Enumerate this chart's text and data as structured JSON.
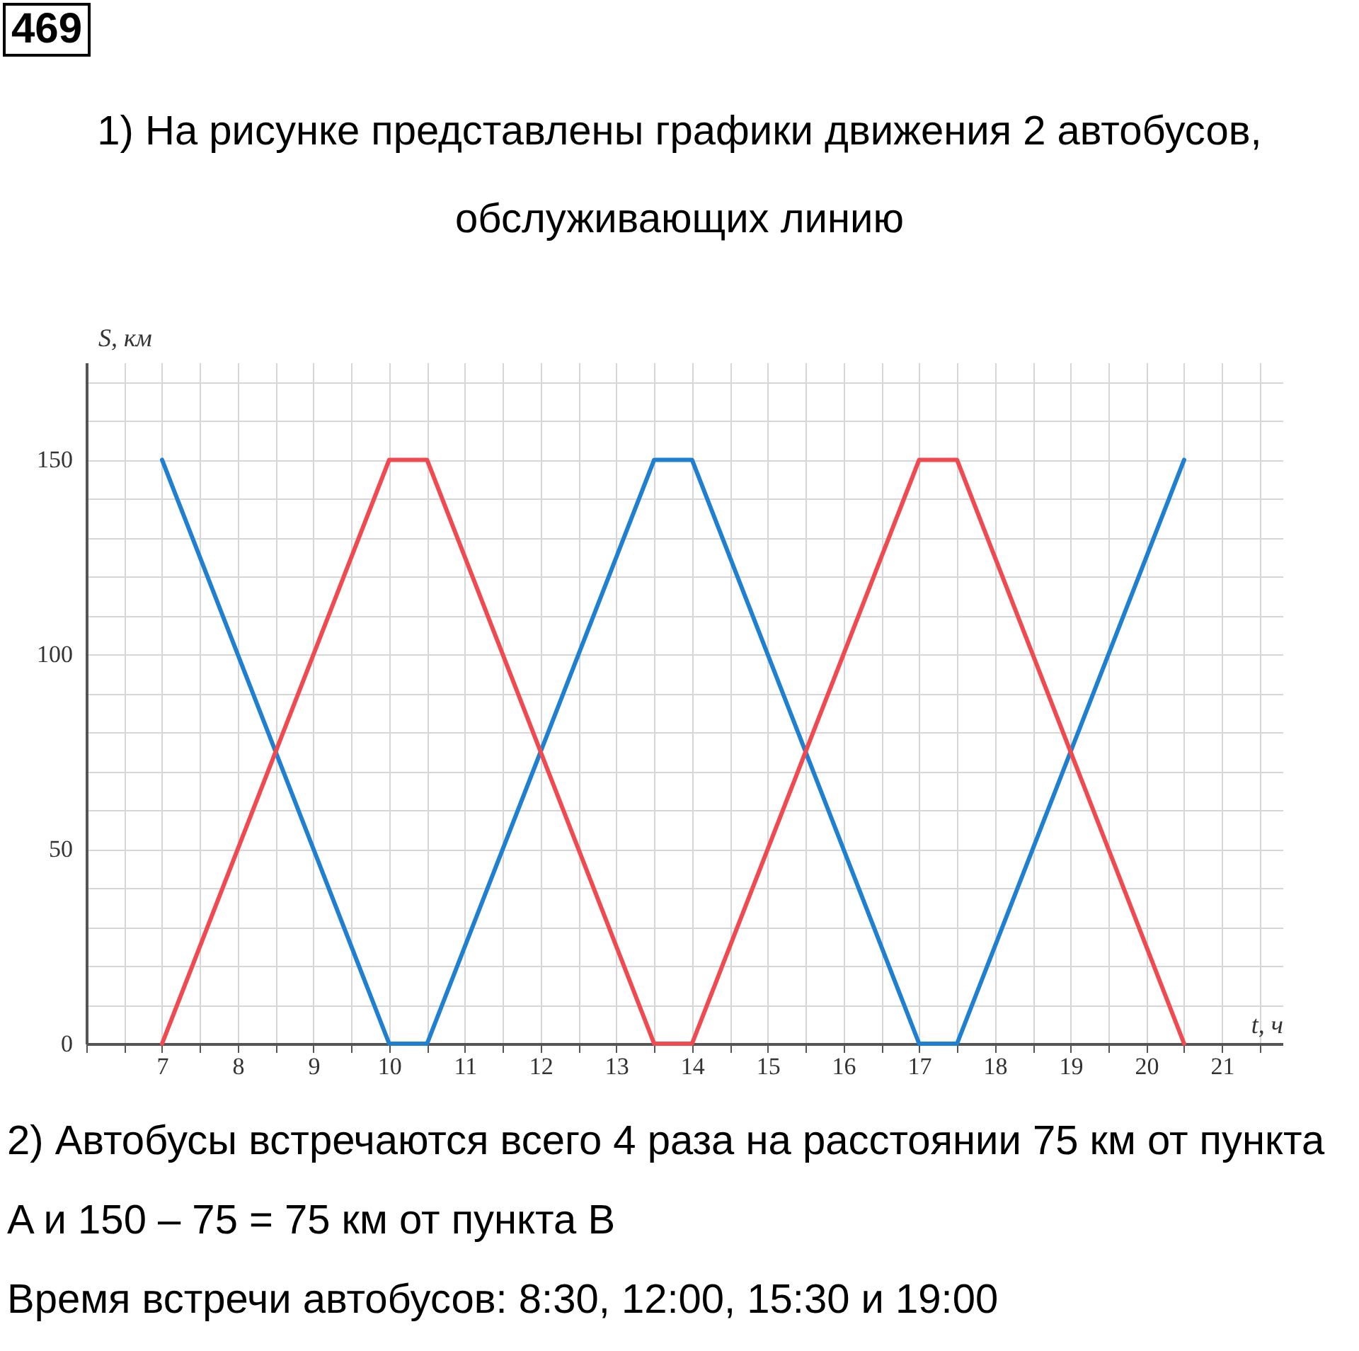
{
  "chart_data": {
    "type": "line",
    "title": "1) На рисунке представлены графики движения 2 автобусов, обслуживающих линию",
    "annotations": [
      "469",
      "2) Автобусы встречаются всего 4 раза на расстоянии 75 км от пункта A и 150 – 75 = 75 км от пункта B",
      "Время встречи автобусов: 8:30, 12:00, 15:30 и 19:00"
    ],
    "xlabel": "t, ч",
    "ylabel": "S, км",
    "xlim": [
      6,
      21.8
    ],
    "ylim": [
      0,
      175
    ],
    "xticks": [
      {
        "value": 6,
        "label": null
      },
      {
        "value": 6.5,
        "label": null
      },
      7,
      {
        "value": 7.5,
        "label": null
      },
      8,
      {
        "value": 8.5,
        "label": null
      },
      9,
      {
        "value": 9.5,
        "label": null
      },
      10,
      {
        "value": 10.5,
        "label": null
      },
      11,
      {
        "value": 11.5,
        "label": null
      },
      12,
      {
        "value": 12.5,
        "label": null
      },
      13,
      {
        "value": 13.5,
        "label": null
      },
      14,
      {
        "value": 14.5,
        "label": null
      },
      15,
      {
        "value": 15.5,
        "label": null
      },
      16,
      {
        "value": 16.5,
        "label": null
      },
      17,
      {
        "value": 17.5,
        "label": null
      },
      18,
      {
        "value": 18.5,
        "label": null
      },
      19,
      {
        "value": 19.5,
        "label": null
      },
      20,
      {
        "value": 20.5,
        "label": null
      },
      21,
      {
        "value": 21.5,
        "label": null
      }
    ],
    "yticks": [
      0,
      {
        "value": 10,
        "label": null
      },
      {
        "value": 20,
        "label": null
      },
      {
        "value": 30,
        "label": null
      },
      {
        "value": 40,
        "label": null
      },
      50,
      {
        "value": 60,
        "label": null
      },
      {
        "value": 70,
        "label": null
      },
      {
        "value": 80,
        "label": null
      },
      {
        "value": 90,
        "label": null
      },
      100,
      {
        "value": 110,
        "label": null
      },
      {
        "value": 120,
        "label": null
      },
      {
        "value": 130,
        "label": null
      },
      {
        "value": 140,
        "label": null
      },
      150,
      {
        "value": 160,
        "label": null
      },
      {
        "value": 170,
        "label": null
      }
    ],
    "grid": true,
    "legend": false,
    "marker": "none",
    "line_style": "solid",
    "series": [
      {
        "color": "#1f7fd0",
        "x": [
          7,
          10,
          10.5,
          13.5,
          14,
          17,
          17.5,
          20.5
        ],
        "values": [
          150,
          0,
          0,
          150,
          150,
          0,
          0,
          150
        ]
      },
      {
        "color": "#f04a50",
        "x": [
          7,
          10,
          10.5,
          13.5,
          14,
          17,
          17.5,
          20.5
        ],
        "values": [
          0,
          150,
          150,
          0,
          0,
          150,
          150,
          0
        ]
      }
    ]
  }
}
